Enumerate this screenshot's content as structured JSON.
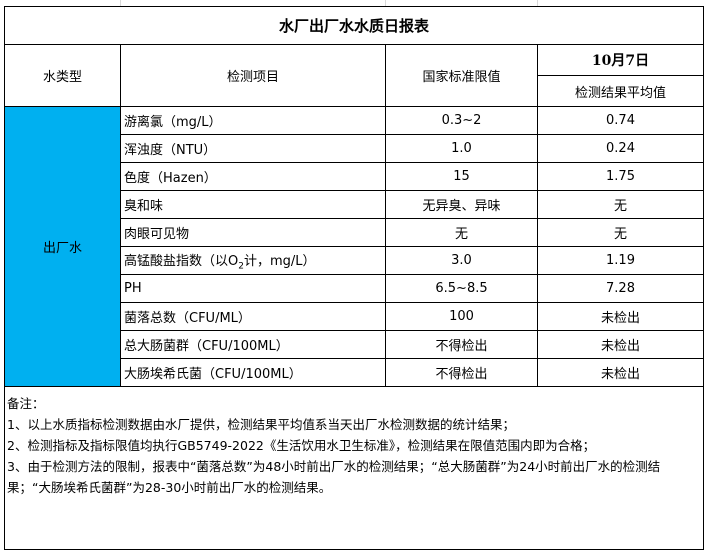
{
  "title": "水厂出厂水水质日报表",
  "headers": {
    "type": "水类型",
    "item": "检测项目",
    "standard": "国家标准限值",
    "date": "10月7日",
    "result": "检测结果平均值"
  },
  "water_type": "出厂水",
  "colors": {
    "water_type_fill": "#00b0f0"
  },
  "rows": [
    {
      "item": "游离氯（mg/L）",
      "standard": "0.3~2",
      "result": "0.74"
    },
    {
      "item": "浑浊度（NTU）",
      "standard": "1.0",
      "result": "0.24"
    },
    {
      "item": "色度（Hazen）",
      "standard": "15",
      "result": "1.75"
    },
    {
      "item": "臭和味",
      "standard": "无异臭、异味",
      "result": "无"
    },
    {
      "item": "肉眼可见物",
      "standard": "无",
      "result": "无"
    },
    {
      "item_pre": "高锰酸盐指数（以O",
      "item_sub": "2",
      "item_post": "计，mg/L）",
      "standard": "3.0",
      "result": "1.19"
    },
    {
      "item": "PH",
      "standard": "6.5~8.5",
      "result": "7.28"
    },
    {
      "item": "菌落总数（CFU/ML）",
      "standard": "100",
      "result": "未检出"
    },
    {
      "item": "总大肠菌群（CFU/100ML）",
      "standard": "不得检出",
      "result": "未检出"
    },
    {
      "item": "大肠埃希氏菌（CFU/100ML）",
      "standard": "不得检出",
      "result": "未检出"
    }
  ],
  "notes": [
    "备注：",
    "1、以上水质指标检测数据由水厂提供，检测结果平均值系当天出厂水检测数据的统计结果；",
    "2、检测指标及指标限值均执行GB5749-2022《生活饮用水卫生标准》，检测结果在限值范围内即为合格；",
    "3、由于检测方法的限制，报表中“菌落总数”为48小时前出厂水的检测结果；“总大肠菌群”为24小时前出厂水的检测结果；“大肠埃希氏菌群”为28-30小时前出厂水的检测结果。"
  ]
}
